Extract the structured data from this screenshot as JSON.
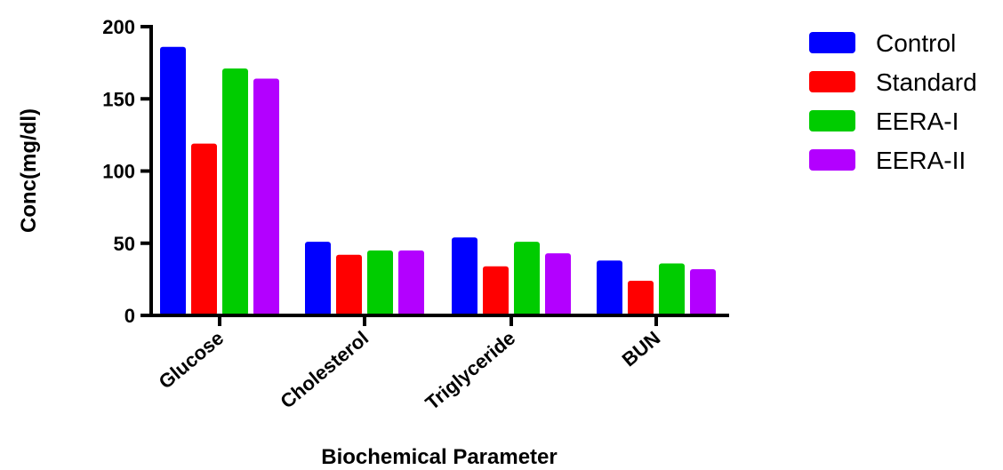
{
  "chart_data": {
    "type": "bar",
    "categories": [
      "Glucose",
      "Cholesterol",
      "Triglyceride",
      "BUN"
    ],
    "series": [
      {
        "name": "Control",
        "color": "#0000ff",
        "values": [
          186,
          51,
          54,
          38
        ]
      },
      {
        "name": "Standard",
        "color": "#ff0000",
        "values": [
          119,
          42,
          34,
          24
        ]
      },
      {
        "name": "EERA-I",
        "color": "#00cc00",
        "values": [
          171,
          45,
          51,
          36
        ]
      },
      {
        "name": "EERA-II",
        "color": "#b300ff",
        "values": [
          164,
          45,
          43,
          32
        ]
      }
    ],
    "xlabel": "Biochemical Parameter",
    "ylabel": "Conc(mg/dl)",
    "ylim": [
      0,
      200
    ],
    "yticks": [
      0,
      50,
      100,
      150,
      200
    ],
    "grid": false,
    "legend_position": "right"
  }
}
